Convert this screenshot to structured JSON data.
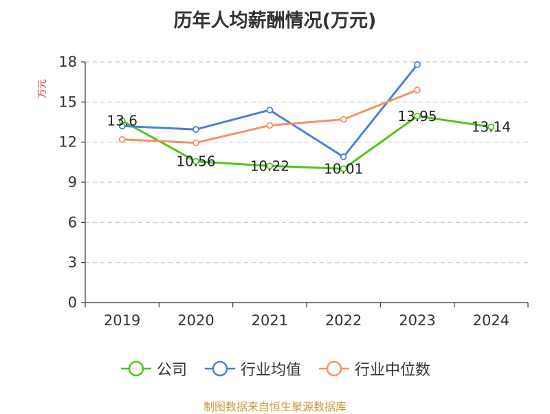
{
  "chart_data": {
    "type": "line",
    "title": "历年人均薪酬情况(万元)",
    "ylabel": "万元",
    "xlabel": "",
    "categories": [
      "2019",
      "2020",
      "2021",
      "2022",
      "2023",
      "2024"
    ],
    "ylim": [
      0,
      18
    ],
    "yticks": [
      0,
      3,
      6,
      9,
      12,
      15,
      18
    ],
    "grid": true,
    "legend_position": "bottom",
    "series": [
      {
        "name": "公司",
        "color": "#52c41a",
        "values": [
          13.6,
          10.56,
          10.22,
          10.01,
          13.95,
          13.14
        ],
        "labels": [
          "13.6",
          "10.56",
          "10.22",
          "10.01",
          "13.95",
          "13.14"
        ]
      },
      {
        "name": "行业均值",
        "color": "#4a7fdc",
        "values": [
          13.2,
          12.95,
          14.4,
          10.9,
          17.8,
          null
        ]
      },
      {
        "name": "行业中位数",
        "color": "#f59362",
        "values": [
          12.2,
          11.95,
          13.25,
          13.7,
          15.9,
          null
        ]
      }
    ]
  },
  "source": "制图数据来自恒生聚源数据库"
}
